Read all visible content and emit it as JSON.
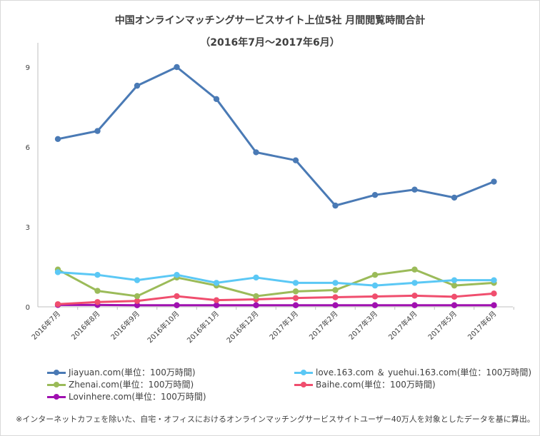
{
  "chart_data": {
    "type": "line",
    "title": "中国オンラインマッチングサービスサイト上位5社 月間閲覧時間合計",
    "subtitle": "（2016年7月～2017年6月）",
    "categories": [
      "2016年7月",
      "2016年8月",
      "2016年9月",
      "2016年10月",
      "2016年11月",
      "2016年12月",
      "2017年1月",
      "2017年2月",
      "2017年3月",
      "2017年4月",
      "2017年5月",
      "2017年6月"
    ],
    "y_ticks": [
      "0",
      "3",
      "6",
      "9"
    ],
    "ylim": [
      0,
      10
    ],
    "grid": false,
    "legend_position": "bottom",
    "series": [
      {
        "name": "Jiayuan.com(単位：100万時間)",
        "color": "#4a7ab5",
        "values": [
          6.3,
          6.6,
          8.3,
          9.0,
          7.8,
          5.8,
          5.5,
          3.8,
          4.2,
          4.4,
          4.1,
          4.7
        ]
      },
      {
        "name": "love.163.com ＆ yuehui.163.com(単位：100万時間)",
        "color": "#5bc8f5",
        "values": [
          1.3,
          1.2,
          1.0,
          1.2,
          0.9,
          1.1,
          0.9,
          0.9,
          0.8,
          0.9,
          1.0,
          1.0
        ]
      },
      {
        "name": "Zhenai.com(単位：100万時間)",
        "color": "#9bbb59",
        "values": [
          1.4,
          0.6,
          0.4,
          1.1,
          0.8,
          0.4,
          0.58,
          0.63,
          1.2,
          1.4,
          0.8,
          0.9
        ]
      },
      {
        "name": "Baihe.com(単位：100万時間)",
        "color": "#f04e6e",
        "values": [
          0.1,
          0.18,
          0.22,
          0.4,
          0.25,
          0.28,
          0.33,
          0.36,
          0.39,
          0.42,
          0.38,
          0.5
        ]
      },
      {
        "name": "Lovinhere.com(単位：100万時間)",
        "color": "#a010b0",
        "values": [
          0.07,
          0.07,
          0.06,
          0.06,
          0.06,
          0.06,
          0.06,
          0.06,
          0.06,
          0.06,
          0.06,
          0.06
        ]
      }
    ],
    "footnote": "※インターネットカフェを除いた、自宅・オフィスにおけるオンラインマッチングサービスサイトユーザー40万人を対象としたデータを基に算出。"
  }
}
